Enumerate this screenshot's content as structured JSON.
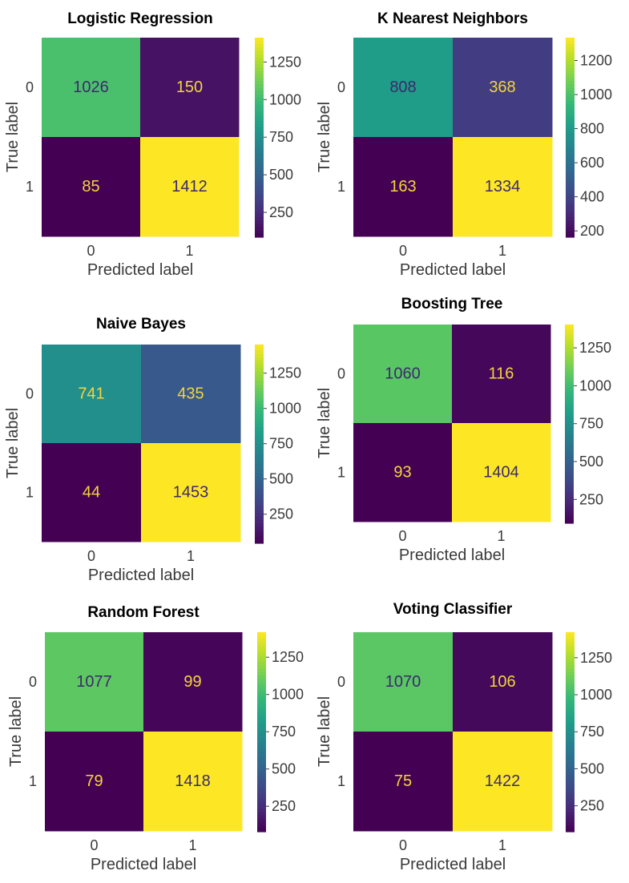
{
  "chart_data": [
    {
      "type": "heatmap",
      "title": "Logistic Regression",
      "xlabel": "Predicted label",
      "ylabel": "True label",
      "x_ticks": [
        "0",
        "1"
      ],
      "y_ticks": [
        "0",
        "1"
      ],
      "matrix": [
        [
          1026,
          150
        ],
        [
          85,
          1412
        ]
      ],
      "colorbar": {
        "range": [
          85,
          1412
        ],
        "ticks": [
          250,
          500,
          750,
          1000,
          1250
        ]
      },
      "colormap": "viridis"
    },
    {
      "type": "heatmap",
      "title": "K Nearest Neighbors",
      "xlabel": "Predicted label",
      "ylabel": "True label",
      "x_ticks": [
        "0",
        "1"
      ],
      "y_ticks": [
        "0",
        "1"
      ],
      "matrix": [
        [
          808,
          368
        ],
        [
          163,
          1334
        ]
      ],
      "colorbar": {
        "range": [
          163,
          1334
        ],
        "ticks": [
          200,
          400,
          600,
          800,
          1000,
          1200
        ]
      },
      "colormap": "viridis"
    },
    {
      "type": "heatmap",
      "title": "Naive Bayes",
      "xlabel": "Predicted label",
      "ylabel": "True label",
      "x_ticks": [
        "0",
        "1"
      ],
      "y_ticks": [
        "0",
        "1"
      ],
      "matrix": [
        [
          741,
          435
        ],
        [
          44,
          1453
        ]
      ],
      "colorbar": {
        "range": [
          44,
          1453
        ],
        "ticks": [
          250,
          500,
          750,
          1000,
          1250
        ]
      },
      "colormap": "viridis"
    },
    {
      "type": "heatmap",
      "title": "Boosting Tree",
      "xlabel": "Predicted label",
      "ylabel": "True label",
      "x_ticks": [
        "0",
        "1"
      ],
      "y_ticks": [
        "0",
        "1"
      ],
      "matrix": [
        [
          1060,
          116
        ],
        [
          93,
          1404
        ]
      ],
      "colorbar": {
        "range": [
          93,
          1404
        ],
        "ticks": [
          250,
          500,
          750,
          1000,
          1250
        ]
      },
      "colormap": "viridis"
    },
    {
      "type": "heatmap",
      "title": "Random Forest",
      "xlabel": "Predicted label",
      "ylabel": "True label",
      "x_ticks": [
        "0",
        "1"
      ],
      "y_ticks": [
        "0",
        "1"
      ],
      "matrix": [
        [
          1077,
          99
        ],
        [
          79,
          1418
        ]
      ],
      "colorbar": {
        "range": [
          79,
          1418
        ],
        "ticks": [
          250,
          500,
          750,
          1000,
          1250
        ]
      },
      "colormap": "viridis"
    },
    {
      "type": "heatmap",
      "title": "Voting Classifier",
      "xlabel": "Predicted label",
      "ylabel": "True label",
      "x_ticks": [
        "0",
        "1"
      ],
      "y_ticks": [
        "0",
        "1"
      ],
      "matrix": [
        [
          1070,
          106
        ],
        [
          75,
          1422
        ]
      ],
      "colorbar": {
        "range": [
          75,
          1422
        ],
        "ticks": [
          250,
          500,
          750,
          1000,
          1250
        ]
      },
      "colormap": "viridis"
    }
  ]
}
